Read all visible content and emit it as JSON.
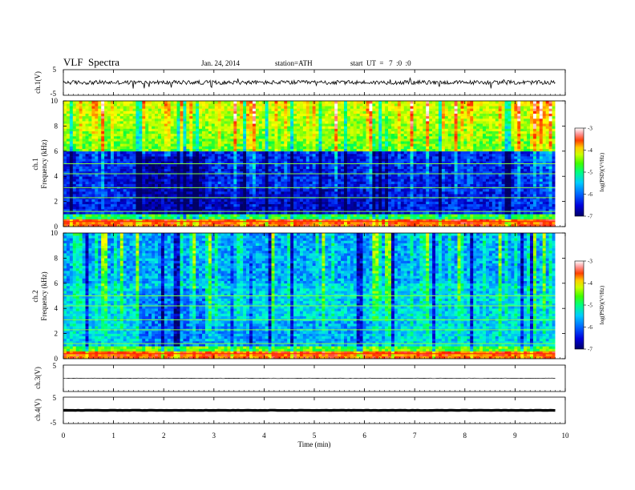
{
  "header": {
    "title": "VLF  Spectra",
    "date": "Jan. 24, 2014",
    "station": "station=ATH",
    "start_ut": "start  UT  =   7  :0  :0"
  },
  "colors": {
    "colormap": [
      "#000066",
      "#0000cc",
      "#0044ff",
      "#00aaff",
      "#00ffd0",
      "#00ff40",
      "#9cff00",
      "#ffff00",
      "#ffa000",
      "#ff2000",
      "#ffffff"
    ],
    "trace": "#000000"
  },
  "chart_data": [
    {
      "type": "line",
      "ylabel": "ch.1(V)",
      "ylim": [
        -5,
        5
      ],
      "yticks": [
        "5",
        "-5"
      ],
      "trace_mean": 0,
      "trace_amplitude": 0.8
    },
    {
      "type": "heatmap",
      "ylabel": "Frequency  (kHz)",
      "channel_label": "ch.1",
      "ylim": [
        0,
        10
      ],
      "yticks": [
        "0",
        "2",
        "4",
        "6",
        "8",
        "10"
      ],
      "colorbar": {
        "label": "log(PSD)(V²/Hz)",
        "range": [
          -7,
          -3
        ],
        "ticks": [
          "-3",
          "-4",
          "-5",
          "-6",
          "-7"
        ]
      },
      "quiet_intervals_min": [
        [
          1.5,
          2.8
        ],
        [
          2.8,
          6.5
        ]
      ]
    },
    {
      "type": "heatmap",
      "ylabel": "Frequency  (kHz)",
      "channel_label": "ch.2",
      "ylim": [
        0,
        10
      ],
      "yticks": [
        "0",
        "2",
        "4",
        "6",
        "8",
        "10"
      ],
      "colorbar": {
        "label": "log(PSD)(V²/Hz)",
        "range": [
          -7,
          -3
        ],
        "ticks": [
          "-3",
          "-4",
          "-5",
          "-6",
          "-7"
        ]
      },
      "quiet_intervals_min": [
        [
          1.5,
          2.8
        ],
        [
          2.8,
          6.5
        ]
      ]
    },
    {
      "type": "line",
      "ylabel": "ch.3(V)",
      "ylim": [
        -5,
        5
      ],
      "yticks": [
        "5"
      ],
      "trace_mean": 0,
      "trace_amplitude": 0.1
    },
    {
      "type": "line",
      "ylabel": "ch.4(V)",
      "ylim": [
        -5,
        5
      ],
      "yticks": [
        "5",
        "-5"
      ],
      "trace_mean": 0,
      "trace_amplitude": 0.05
    }
  ],
  "x_axis": {
    "label": "Time  (min)",
    "range": [
      0,
      10
    ],
    "data_end": 9.8,
    "ticks": [
      "0",
      "1",
      "2",
      "3",
      "4",
      "5",
      "6",
      "7",
      "8",
      "9",
      "10"
    ]
  }
}
